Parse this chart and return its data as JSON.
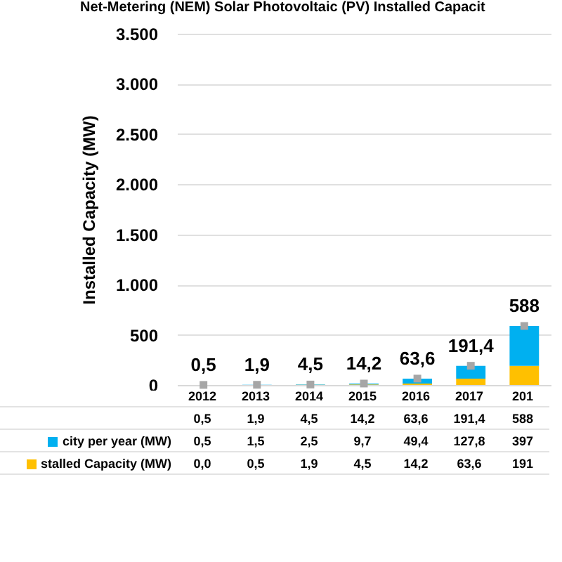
{
  "chart_data": {
    "type": "bar",
    "title": "Net-Metering (NEM) Solar Photovoltaic (PV) Installed Capacit",
    "ylabel": "Installed Capacity (MW)",
    "categories": [
      "2012",
      "2013",
      "2014",
      "2015",
      "2016",
      "2017",
      "201"
    ],
    "stacked": true,
    "grid": "y",
    "legend": "bottom",
    "ylim": [
      0,
      3500
    ],
    "yticks": [
      {
        "value": 0,
        "label": "0"
      },
      {
        "value": 500,
        "label": "500"
      },
      {
        "value": 1000,
        "label": "1.000"
      },
      {
        "value": 1500,
        "label": "1.500"
      },
      {
        "value": 2000,
        "label": "2.000"
      },
      {
        "value": 2500,
        "label": "2.500"
      },
      {
        "value": 3000,
        "label": "3.000"
      },
      {
        "value": 3500,
        "label": "3.500"
      }
    ],
    "series": [
      {
        "name": "stalled Capacity (MW)",
        "color": "#ffc000",
        "values": [
          0.0,
          0.5,
          1.9,
          4.5,
          14.2,
          63.6,
          191
        ],
        "value_labels": [
          "0,0",
          "0,5",
          "1,9",
          "4,5",
          "14,2",
          "63,6",
          "191"
        ]
      },
      {
        "name": "city per year (MW)",
        "color": "#00b0f0",
        "values": [
          0.5,
          1.5,
          2.5,
          9.7,
          49.4,
          127.8,
          397
        ],
        "value_labels": [
          "0,5",
          "1,5",
          "2,5",
          "9,7",
          "49,4",
          "127,8",
          "397"
        ]
      },
      {
        "type": "scatter",
        "marker": "square",
        "color": "#a6a6a6",
        "values": [
          0.5,
          1.9,
          4.5,
          14.2,
          63.6,
          191.4,
          588
        ],
        "value_labels": [
          "0,5",
          "1,9",
          "4,5",
          "14,2",
          "63,6",
          "191,4",
          "588"
        ]
      }
    ],
    "totals": [
      "0,5",
      "1,9",
      "4,5",
      "14,2",
      "63,6",
      "191,4",
      "588"
    ]
  }
}
